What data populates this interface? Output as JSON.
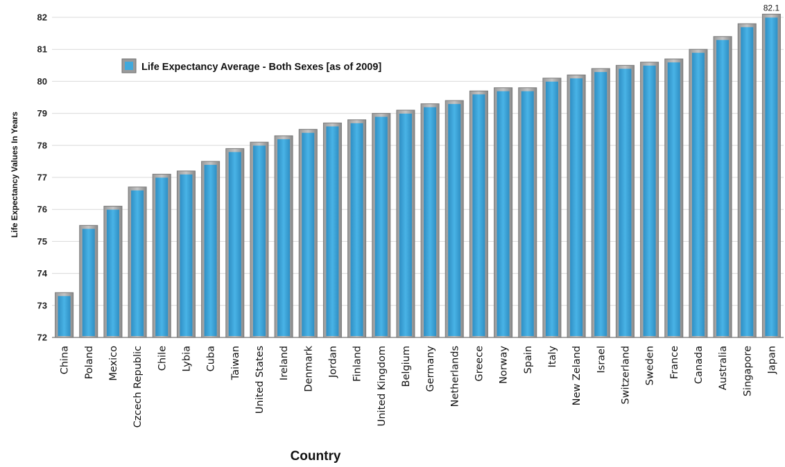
{
  "chart_data": {
    "type": "bar",
    "title": "",
    "xlabel": "Country",
    "ylabel": "Life Expectancy  Values In Years",
    "ylim": [
      72,
      82
    ],
    "yticks": [
      72,
      73,
      74,
      75,
      76,
      77,
      78,
      79,
      80,
      81,
      82
    ],
    "grid": true,
    "legend_position": "top-left",
    "categories": [
      "China",
      "Poland",
      "Mexico",
      "Czcech Republic",
      "Chile",
      "Lybia",
      "Cuba",
      "Taiwan",
      "United States",
      "Ireland",
      "Denmark",
      "Jordan",
      "Finland",
      "United Kingdom",
      "Belgium",
      "Germany",
      "Netherlands",
      "Greece",
      "Norway",
      "Spain",
      "Italy",
      "New  Zeland",
      "Israel",
      "Switzerland",
      "Sweden",
      "France",
      "Canada",
      "Australia",
      "Singapore",
      "Japan"
    ],
    "series": [
      {
        "name": "Life Expectancy Average - Both Sexes [as of 2009]",
        "color": "#41a9dc",
        "values": [
          73.4,
          75.5,
          76.1,
          76.7,
          77.1,
          77.2,
          77.5,
          77.9,
          78.1,
          78.3,
          78.5,
          78.7,
          78.8,
          79.0,
          79.1,
          79.3,
          79.4,
          79.7,
          79.8,
          79.8,
          80.1,
          80.2,
          80.4,
          80.5,
          80.6,
          80.7,
          81.0,
          81.4,
          81.8,
          82.1
        ]
      }
    ],
    "data_labels": [
      {
        "category": "Japan",
        "text": "82.1"
      }
    ]
  }
}
